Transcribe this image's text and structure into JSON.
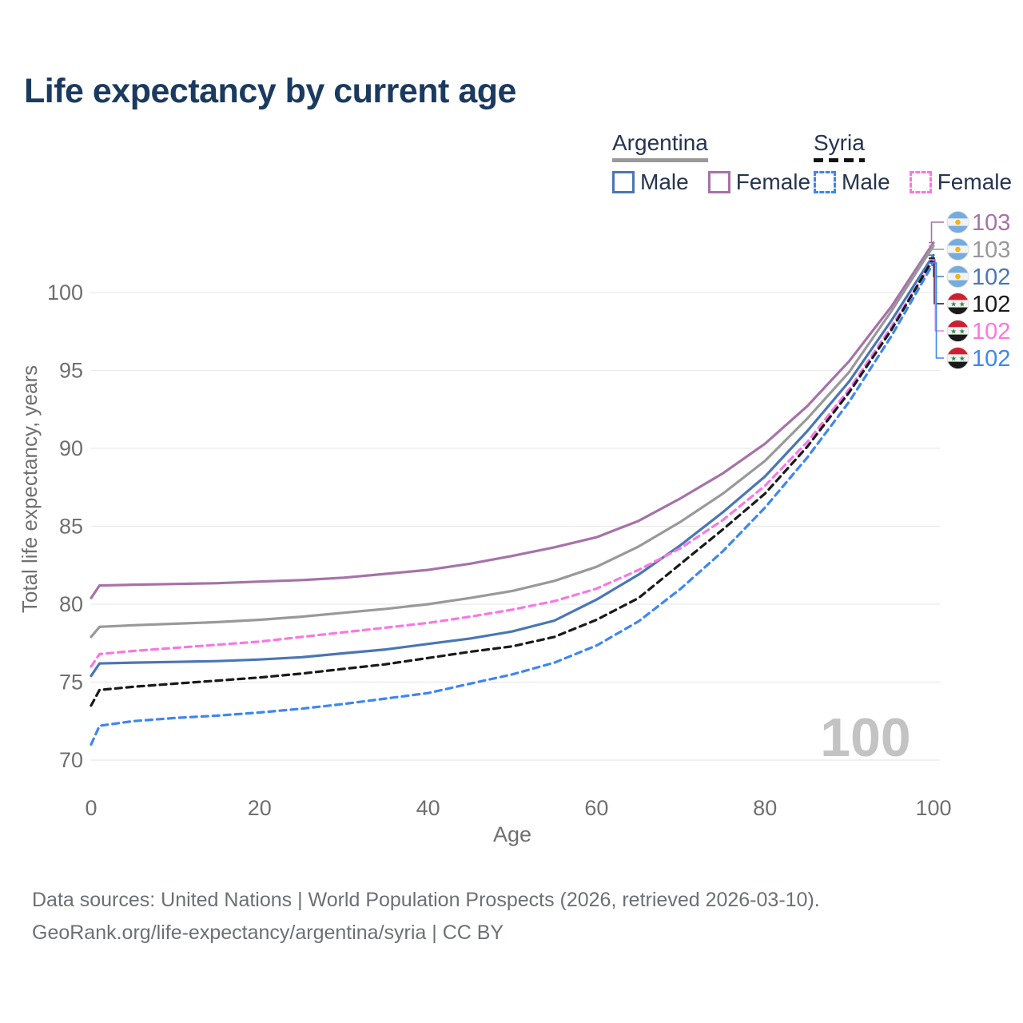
{
  "title": "Life expectancy by current age",
  "watermark": "100",
  "colors": {
    "title": "#1b3a5f",
    "axis": "#6f6f6f",
    "grid": "#e9e9e9",
    "watermark": "#c3c3c3",
    "footer": "#6b7075",
    "argentina_male": "#4a76b4",
    "argentina_female": "#a672a8",
    "argentina_total": "#999999",
    "syria_male": "#3f86f0",
    "syria_female": "#f878e2",
    "syria_total": "#1a1a1a"
  },
  "legend": {
    "groups": [
      {
        "country": "Argentina",
        "line_style": "solid",
        "underline_color": "#999999",
        "items": [
          {
            "label": "Male",
            "color": "#4a76b4",
            "dash": false
          },
          {
            "label": "Female",
            "color": "#a672a8",
            "dash": false
          }
        ]
      },
      {
        "country": "Syria",
        "line_style": "dashed",
        "underline_color": "#111111",
        "items": [
          {
            "label": "Male",
            "color": "#3f86f0",
            "dash": true
          },
          {
            "label": "Female",
            "color": "#f878e2",
            "dash": true
          }
        ]
      }
    ]
  },
  "chart_data": {
    "type": "line",
    "title": "Life expectancy by current age",
    "xlabel": "Age",
    "ylabel": "Total life expectancy, years",
    "xlim": [
      0,
      100
    ],
    "ylim": [
      70,
      104
    ],
    "x_ticks": [
      0,
      20,
      40,
      60,
      80,
      100
    ],
    "y_ticks": [
      70,
      75,
      80,
      85,
      90,
      95,
      100
    ],
    "grid": "horizontal",
    "legend_position": "top-right",
    "x": [
      0,
      1,
      5,
      10,
      15,
      20,
      25,
      30,
      35,
      40,
      45,
      50,
      55,
      60,
      65,
      70,
      75,
      80,
      85,
      90,
      95,
      100
    ],
    "series": [
      {
        "id": "argentina-female",
        "name": "Argentina Female",
        "color": "#a672a8",
        "dash": false,
        "values": [
          80.4,
          81.2,
          81.25,
          81.3,
          81.35,
          81.45,
          81.55,
          81.7,
          81.95,
          82.2,
          82.6,
          83.1,
          83.65,
          84.3,
          85.35,
          86.8,
          88.4,
          90.3,
          92.7,
          95.6,
          99.1,
          103.2
        ]
      },
      {
        "id": "argentina-total",
        "name": "Argentina",
        "color": "#999999",
        "dash": false,
        "values": [
          77.9,
          78.55,
          78.65,
          78.75,
          78.85,
          79.0,
          79.2,
          79.45,
          79.7,
          80.0,
          80.4,
          80.85,
          81.5,
          82.4,
          83.7,
          85.3,
          87.1,
          89.2,
          91.9,
          94.9,
          98.8,
          103.0
        ]
      },
      {
        "id": "argentina-male",
        "name": "Argentina Male",
        "color": "#4a76b4",
        "dash": false,
        "values": [
          75.4,
          76.2,
          76.25,
          76.3,
          76.35,
          76.45,
          76.6,
          76.85,
          77.1,
          77.45,
          77.8,
          78.25,
          78.95,
          80.3,
          81.9,
          83.8,
          85.9,
          88.2,
          91.1,
          94.3,
          98.2,
          102.4
        ]
      },
      {
        "id": "syria-female",
        "name": "Syria Female",
        "color": "#f878e2",
        "dash": true,
        "values": [
          76.0,
          76.8,
          77.0,
          77.2,
          77.4,
          77.6,
          77.9,
          78.2,
          78.5,
          78.8,
          79.2,
          79.65,
          80.2,
          81.0,
          82.2,
          83.6,
          85.4,
          87.6,
          90.4,
          93.8,
          97.8,
          102.1
        ]
      },
      {
        "id": "syria-total",
        "name": "Syria",
        "color": "#1a1a1a",
        "dash": true,
        "values": [
          73.5,
          74.5,
          74.7,
          74.9,
          75.1,
          75.3,
          75.55,
          75.85,
          76.15,
          76.55,
          76.95,
          77.3,
          77.9,
          79.0,
          80.4,
          82.6,
          84.8,
          87.1,
          90.1,
          93.6,
          97.6,
          102.2
        ]
      },
      {
        "id": "syria-male",
        "name": "Syria Male",
        "color": "#3f86f0",
        "dash": true,
        "values": [
          71.0,
          72.2,
          72.5,
          72.7,
          72.85,
          73.05,
          73.3,
          73.6,
          73.95,
          74.3,
          74.9,
          75.5,
          76.25,
          77.35,
          78.9,
          81.0,
          83.4,
          86.2,
          89.4,
          93.0,
          97.2,
          101.9
        ]
      }
    ]
  },
  "end_labels": [
    {
      "series": "argentina-female",
      "value": "103",
      "flag": "argentina"
    },
    {
      "series": "argentina-total",
      "value": "103",
      "flag": "argentina"
    },
    {
      "series": "argentina-male",
      "value": "102",
      "flag": "argentina"
    },
    {
      "series": "syria-total",
      "value": "102",
      "flag": "syria"
    },
    {
      "series": "syria-female",
      "value": "102",
      "flag": "syria"
    },
    {
      "series": "syria-male",
      "value": "102",
      "flag": "syria"
    }
  ],
  "footer": {
    "line1": "Data sources: United Nations | World Population Prospects (2026, retrieved 2026-03-10).",
    "line2": "GeoRank.org/life-expectancy/argentina/syria | CC BY"
  }
}
